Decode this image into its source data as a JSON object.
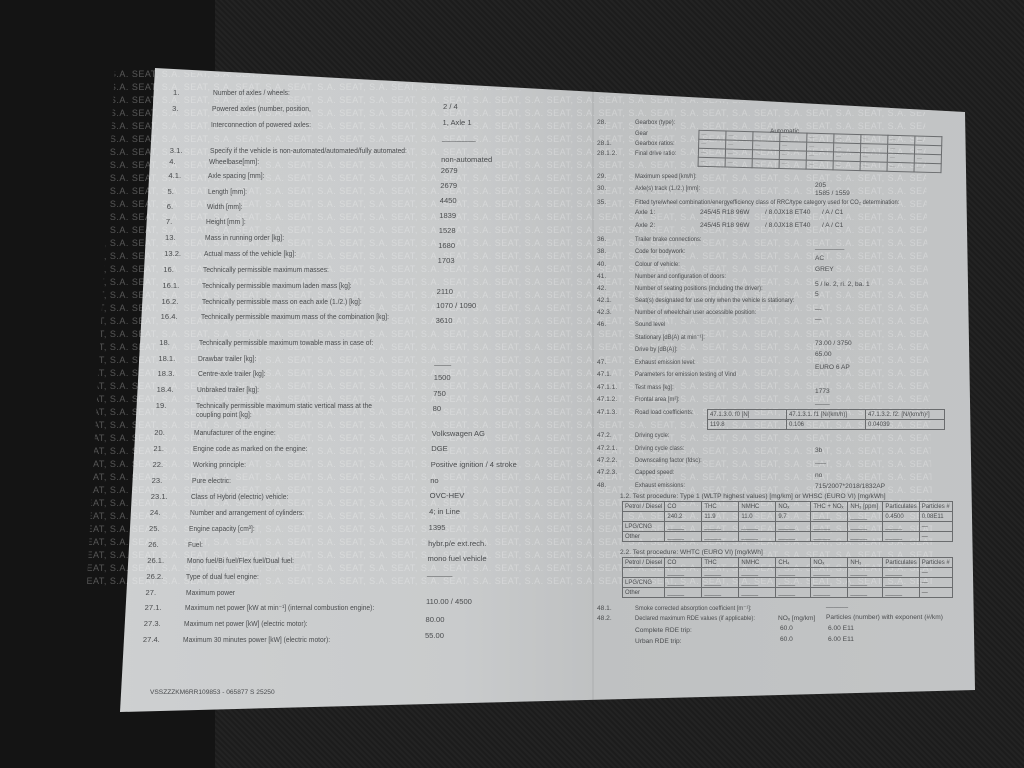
{
  "watermark": "SEAT, S.A.",
  "left_page": [
    {
      "num": "1.",
      "label": "Number of axles / wheels:",
      "value": "2 / 4"
    },
    {
      "num": "3.",
      "label": "Powered axles (number, position,",
      "value": "1, Axle 1"
    },
    {
      "num": "",
      "label": "Interconnection of powered axles:",
      "value": "________"
    },
    {
      "num": "3.1.",
      "label": "Specify if the vehicle is non-automated/automated/fully automated:",
      "value": "non-automated"
    },
    {
      "num": "4.",
      "label": "Wheelbase[mm]:",
      "value": "2679"
    },
    {
      "num": "4.1.",
      "label": "Axle spacing [mm]:",
      "value": "2679"
    },
    {
      "num": "5.",
      "label": "Length [mm]:",
      "value": "4450"
    },
    {
      "num": "6.",
      "label": "Width [mm]:",
      "value": "1839"
    },
    {
      "num": "7.",
      "label": "Height [mm ]:",
      "value": "1528"
    },
    {
      "num": "13.",
      "label": "Mass in running order [kg]:",
      "value": "1680"
    },
    {
      "num": "13.2.",
      "label": "Actual mass of the vehicle [kg]:",
      "value": "1703"
    },
    {
      "num": "16.",
      "label": "Technically permissible maximum masses:",
      "value": ""
    },
    {
      "num": "16.1.",
      "label": "Technically permissible maximum laden mass [kg]:",
      "value": "2110"
    },
    {
      "num": "16.2.",
      "label": "Technically permissible mass on each axle (1./2.) [kg]:",
      "value": "1070 / 1090"
    },
    {
      "num": "16.4.",
      "label": "Technically permissible maximum mass of the combination [kg]:",
      "value": "3610"
    },
    {
      "num": "18.",
      "label": "Technically permissible maximum towable mass in case of:",
      "value": ""
    },
    {
      "num": "18.1.",
      "label": "Drawbar trailer [kg]:",
      "value": "____"
    },
    {
      "num": "18.3.",
      "label": "Centre-axle trailer [kg]:",
      "value": "1500"
    },
    {
      "num": "18.4.",
      "label": "Unbraked trailer [kg]:",
      "value": "750"
    },
    {
      "num": "19.",
      "label": "Technically permissible maximum static vertical mass at the",
      "label2": "coupling point [kg]:",
      "value": "80"
    },
    {
      "num": "20.",
      "label": "Manufacturer of the engine:",
      "value": "Volkswagen AG"
    },
    {
      "num": "21.",
      "label": "Engine code as marked on the engine:",
      "value": "DGE"
    },
    {
      "num": "22.",
      "label": "Working principle:",
      "value": "Positive ignition / 4 stroke"
    },
    {
      "num": "23.",
      "label": "Pure electric:",
      "value": "no"
    },
    {
      "num": "23.1.",
      "label": "Class of Hybrid (electric) vehicle:",
      "value": "OVC-HEV"
    },
    {
      "num": "24.",
      "label": "Number and arrangement of cylinders:",
      "value": "4; in Line"
    },
    {
      "num": "25.",
      "label": "Engine capacity [cm³]:",
      "value": "1395"
    },
    {
      "num": "26.",
      "label": "Fuel:",
      "value": "hybr.p/e ext.rech."
    },
    {
      "num": "26.1.",
      "label": "Mono fuel/Bi fuel/Flex fuel/Dual fuel:",
      "value": "mono fuel vehicle"
    },
    {
      "num": "26.2.",
      "label": "Type of dual fuel engine:",
      "value": "______"
    },
    {
      "num": "27.",
      "label": "Maximum power",
      "value": ""
    },
    {
      "num": "27.1.",
      "label": "Maximum net power [kW at min⁻¹] (internal combustion engine):",
      "value": "110.00 / 4500"
    },
    {
      "num": "27.3.",
      "label": "Maximum net power [kW] (electric motor):",
      "value": "80.00"
    },
    {
      "num": "27.4.",
      "label": "Maximum 30 minutes power [kW] (electric motor):",
      "value": "55.00"
    }
  ],
  "footer": "VSSZZZKM6RR109853 - 065877 S 25250",
  "right_page": {
    "rows": [
      {
        "num": "28.",
        "label": "Gearbox (type):",
        "value": "Automatic"
      },
      {
        "num": "",
        "label": "Gear",
        "value": ""
      },
      {
        "num": "28.1.",
        "label": "Gearbox ratios:",
        "value": ""
      },
      {
        "num": "28.1.2.",
        "label": "Final drive ratio:",
        "value": ""
      },
      {
        "num": "29.",
        "label": "Maximum speed [km/h]:",
        "value": "205"
      },
      {
        "num": "30.",
        "label": "Axle(s) track (1./2.) [mm]:",
        "value": "1585 / 1559"
      },
      {
        "num": "35.",
        "label": "Fitted tyre/wheel combination/energyefficiency class of RRC/type category used for CO₂ determination:",
        "value": ""
      },
      {
        "num": "36.",
        "label": "Trailer brake connections:",
        "value": "________"
      },
      {
        "num": "38.",
        "label": "Code for bodywork:",
        "value": "AC"
      },
      {
        "num": "40.",
        "label": "Colour of vehicle:",
        "value": "GREY"
      },
      {
        "num": "41.",
        "label": "Number and configuration of doors:",
        "value": "5  / le. 2, ri. 2, ba. 1"
      },
      {
        "num": "42.",
        "label": "Number of seating positions (including the driver):",
        "value": "5"
      },
      {
        "num": "42.1.",
        "label": "Seat(s) designated for use only when the vehicle is stationary:",
        "value": "—"
      },
      {
        "num": "42.3.",
        "label": "Number of wheelchair user accessible position:",
        "value": "—"
      },
      {
        "num": "46.",
        "label": "Sound level",
        "value": ""
      },
      {
        "num": "",
        "label": "Stationary [dB(A) at min⁻¹]:",
        "value": "73.00 / 3750"
      },
      {
        "num": "",
        "label": "Drive by [dB(A)]:",
        "value": "65.00"
      },
      {
        "num": "47.",
        "label": "Exhaust emission level:",
        "value": "EURO 6 AP"
      },
      {
        "num": "47.1.",
        "label": "Parameters for emission testing of Vind",
        "value": ""
      },
      {
        "num": "47.1.1.",
        "label": "Test mass [kg]:",
        "value": "1773"
      },
      {
        "num": "47.1.2.",
        "label": "Frontal area [m²]:",
        "value": "____"
      },
      {
        "num": "47.1.3.",
        "label": "Road load coefficients:",
        "value": ""
      },
      {
        "num": "47.2.",
        "label": "Driving cycle:",
        "value": ""
      },
      {
        "num": "47.2.1.",
        "label": "Driving cycle class:",
        "value": "3b"
      },
      {
        "num": "47.2.2.",
        "label": "Downscaling factor (fdsc):",
        "value": "___"
      },
      {
        "num": "47.2.3.",
        "label": "Capped speed:",
        "value": "no"
      },
      {
        "num": "48.",
        "label": "Exhaust emissions:",
        "value": "715/2007*2018/1832AP"
      }
    ],
    "tyres": [
      {
        "axle": "Axle 1:",
        "tyre": "245/45 R18 96W",
        "rim": "/ 8.0JX18 ET40",
        "class": "/ A  / C1"
      },
      {
        "axle": "Axle 2:",
        "tyre": "245/45 R18 96W",
        "rim": "/ 8.0JX18 ET40",
        "class": "/ A  / C1"
      }
    ],
    "road_load": {
      "headers": [
        "47.1.3.0. f0 [N]",
        "47.1.3.1. f1 [N/(km/h)]",
        "47.1.3.2. f2: [N/(km/h)²]"
      ],
      "values": [
        "119.8",
        "0.106",
        "0.04039"
      ]
    },
    "test1": {
      "title": "1.2. Test procedure: Type 1 (WLTP highest values) [mg/km] or WHSC (EURO VI) [mg/kWh]",
      "headers": [
        "Petrol / Diesel",
        "CO",
        "THC",
        "NMHC",
        "NOₓ",
        "THC + NOₓ",
        "NH₃ [ppm]",
        "Particulates",
        "Particles #"
      ],
      "rows": [
        [
          "",
          "240.2",
          "11.9",
          "11.0",
          "9.7",
          "_____",
          "_____",
          "0.4500",
          "0.08E11"
        ],
        [
          "LPG/CNG",
          "_____",
          "_____",
          "_____",
          "_____",
          "_____",
          "_____",
          "_____",
          "—"
        ],
        [
          "Other",
          "_____",
          "_____",
          "_____",
          "_____",
          "_____",
          "_____",
          "_____",
          "—"
        ]
      ]
    },
    "test2": {
      "title": "2.2. Test procedure: WHTC (EURO VI) [mg/kWh]",
      "headers": [
        "Petrol / Diesel",
        "CO",
        "THC",
        "NMHC",
        "CH₄",
        "NOₓ",
        "NH₃",
        "Particulates",
        "Particles #"
      ],
      "rows": [
        [
          "",
          "_____",
          "_____",
          "_____",
          "_____",
          "_____",
          "_____",
          "_____",
          "—"
        ],
        [
          "LPG/CNG",
          "_____",
          "_____",
          "_____",
          "_____",
          "_____",
          "_____",
          "_____",
          "—"
        ],
        [
          "Other",
          "_____",
          "_____",
          "_____",
          "_____",
          "_____",
          "_____",
          "_____",
          "—"
        ]
      ]
    },
    "smoke": {
      "num": "48.1.",
      "label": "Smoke corrected absorption coefficient [m⁻¹]:",
      "value": "______"
    },
    "rde": {
      "num": "48.2.",
      "label": "Declared maximum RDE values (if applicable):",
      "col1": "NOₓ [mg/km]",
      "col2": "Particles (number) with exponent (#/km)",
      "rows": [
        {
          "label": "Complete RDE trip:",
          "nox": "60.0",
          "pn": "6.00 E11"
        },
        {
          "label": "Urban RDE trip:",
          "nox": "60.0",
          "pn": "6.00 E11"
        }
      ]
    }
  }
}
